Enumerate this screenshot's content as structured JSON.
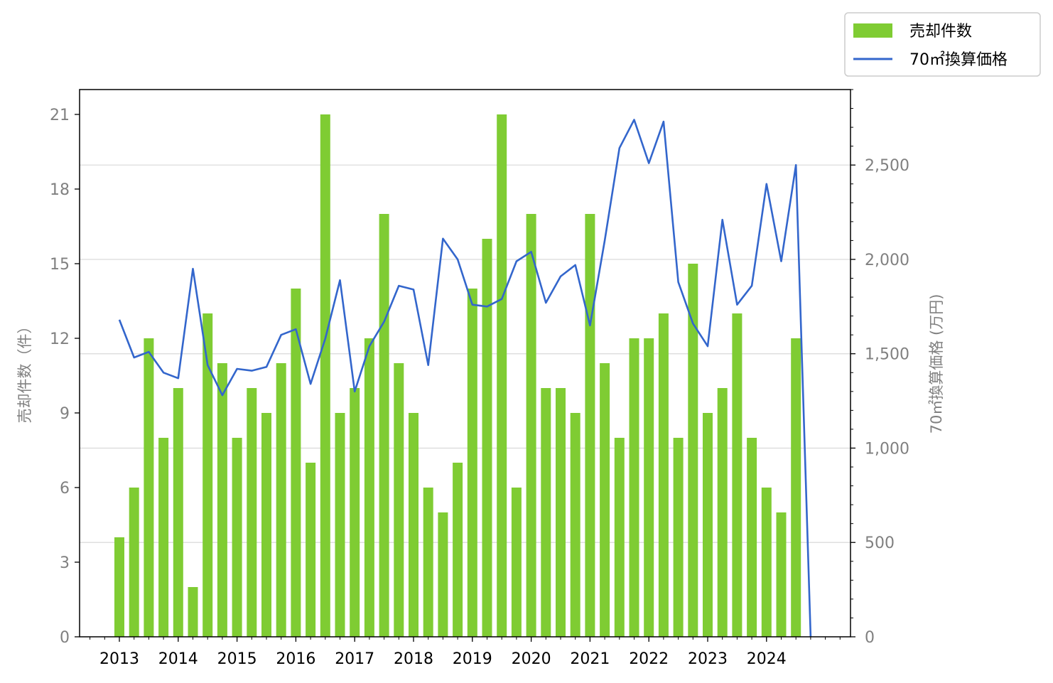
{
  "chart_data": {
    "type": "bar+line",
    "x_tick_labels": [
      "2013",
      "2014",
      "2015",
      "2016",
      "2017",
      "2018",
      "2019",
      "2020",
      "2021",
      "2022",
      "2023",
      "2024"
    ],
    "periods_per_year": 4,
    "left_axis": {
      "label": "売却件数（件）",
      "ylim": [
        0,
        22
      ],
      "ticks": [
        0,
        3,
        6,
        9,
        12,
        15,
        18,
        21
      ]
    },
    "right_axis": {
      "label": "70㎡換算価格 (万円)",
      "ylim": [
        0,
        2900
      ],
      "ticks": [
        0,
        500,
        1000,
        1500,
        2000,
        2500
      ],
      "tick_labels": [
        "0",
        "500",
        "1,000",
        "1,500",
        "2,000",
        "2,500"
      ]
    },
    "series": [
      {
        "name": "売却件数",
        "type": "bar",
        "axis": "left",
        "color": "#7fcc33",
        "values": [
          4,
          6,
          12,
          8,
          10,
          2,
          13,
          11,
          8,
          10,
          9,
          11,
          14,
          7,
          21,
          9,
          10,
          12,
          17,
          11,
          9,
          6,
          5,
          7,
          14,
          16,
          21,
          6,
          17,
          10,
          10,
          9,
          17,
          11,
          8,
          12,
          12,
          13,
          8,
          15,
          9,
          10,
          13,
          8,
          6,
          5,
          12
        ]
      },
      {
        "name": "70㎡換算価格",
        "type": "line",
        "axis": "right",
        "color": "#3366cc",
        "values": [
          1680,
          1480,
          1510,
          1400,
          1370,
          1950,
          1440,
          1280,
          1420,
          1410,
          1430,
          1600,
          1630,
          1340,
          1580,
          1890,
          1300,
          1540,
          1670,
          1860,
          1840,
          1440,
          2110,
          2000,
          1760,
          1750,
          1790,
          1990,
          2040,
          1770,
          1910,
          1970,
          1650,
          2100,
          2590,
          2740,
          2510,
          2730,
          1880,
          1660,
          1540,
          2210,
          1760,
          1860,
          2400,
          1990,
          2500,
          0
        ]
      }
    ],
    "grid": "horizontal-right-axis",
    "legend": "top-right-outside"
  }
}
